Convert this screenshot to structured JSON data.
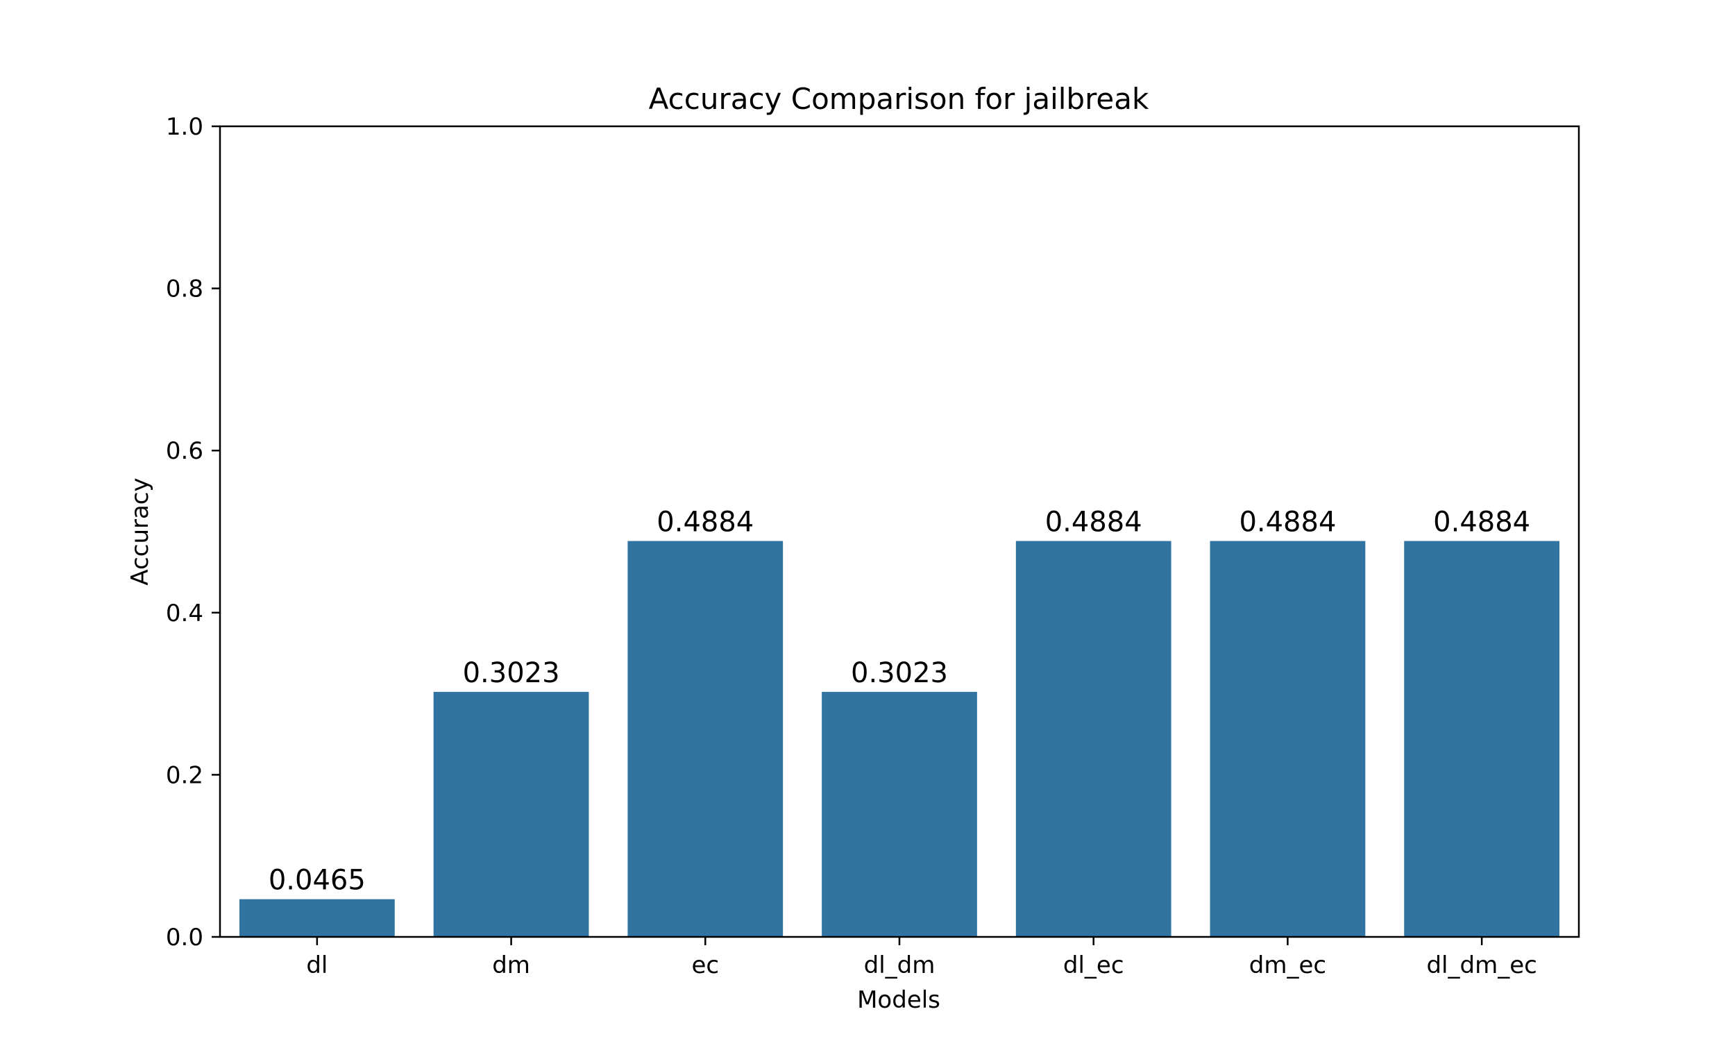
{
  "chart_data": {
    "type": "bar",
    "title": "Accuracy Comparison for jailbreak",
    "xlabel": "Models",
    "ylabel": "Accuracy",
    "categories": [
      "dl",
      "dm",
      "ec",
      "dl_dm",
      "dl_ec",
      "dm_ec",
      "dl_dm_ec"
    ],
    "values": [
      0.0465,
      0.3023,
      0.4884,
      0.3023,
      0.4884,
      0.4884,
      0.4884
    ],
    "data_labels": [
      "0.0465",
      "0.3023",
      "0.4884",
      "0.3023",
      "0.4884",
      "0.4884",
      "0.4884"
    ],
    "ylim": [
      0,
      1.0
    ],
    "yticks": [
      0.0,
      0.2,
      0.4,
      0.6,
      0.8,
      1.0
    ],
    "ytick_labels": [
      "0.0",
      "0.2",
      "0.4",
      "0.6",
      "0.8",
      "1.0"
    ],
    "grid": false,
    "legend": "none",
    "bar_color": "#3274a1"
  }
}
